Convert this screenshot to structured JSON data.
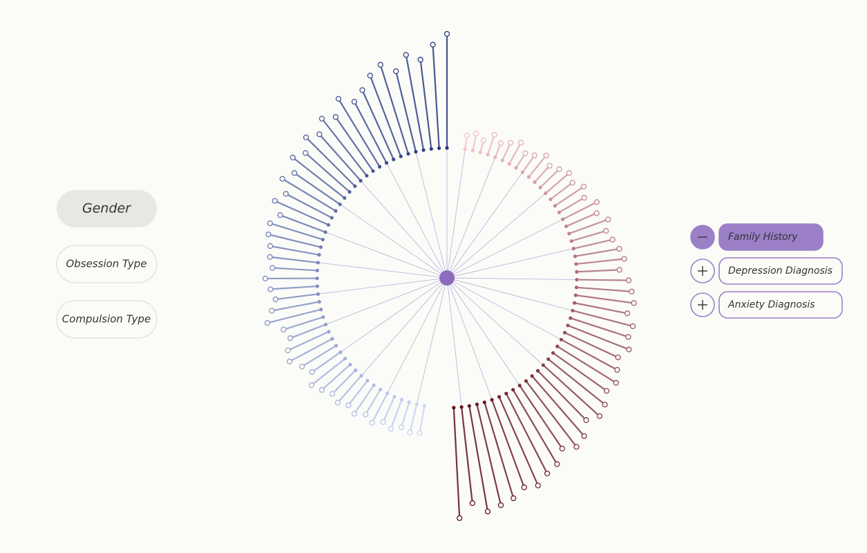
{
  "left_panel": {
    "buttons": [
      "Gender",
      "Obsession Type",
      "Compulsion Type"
    ],
    "selected": 0
  },
  "right_panel": {
    "toggles": [
      "Family History",
      "Depression Diagnosis",
      "Anxiety Diagnosis"
    ],
    "expanded": 0
  },
  "visualization": {
    "hub_color": "#8e6bbf",
    "groups": [
      {
        "colors": [
          "#27367a",
          "#c9d6f7"
        ],
        "values": [
          165,
          150,
          130,
          140,
          120,
          135,
          125,
          110,
          100,
          115,
          95,
          105,
          90,
          100,
          85,
          95,
          80,
          90,
          75,
          85,
          70,
          80,
          78,
          72,
          70,
          65,
          75,
          68,
          62,
          70,
          80,
          60,
          55,
          65,
          70,
          58,
          50,
          62,
          55,
          48,
          52,
          45,
          50,
          42,
          48,
          40,
          45,
          38,
          42,
          40
        ]
      },
      {
        "colors": [
          "#f5c3cc",
          "#5c0f18"
        ],
        "values": [
          20,
          25,
          18,
          30,
          22,
          28,
          35,
          25,
          30,
          40,
          32,
          38,
          45,
          40,
          50,
          42,
          55,
          48,
          60,
          52,
          58,
          65,
          70,
          62,
          75,
          80,
          85,
          78,
          90,
          88,
          95,
          85,
          92,
          100,
          95,
          105,
          110,
          100,
          115,
          120,
          110,
          125,
          130,
          140,
          135,
          145,
          150,
          155,
          140,
          160
        ]
      }
    ]
  }
}
